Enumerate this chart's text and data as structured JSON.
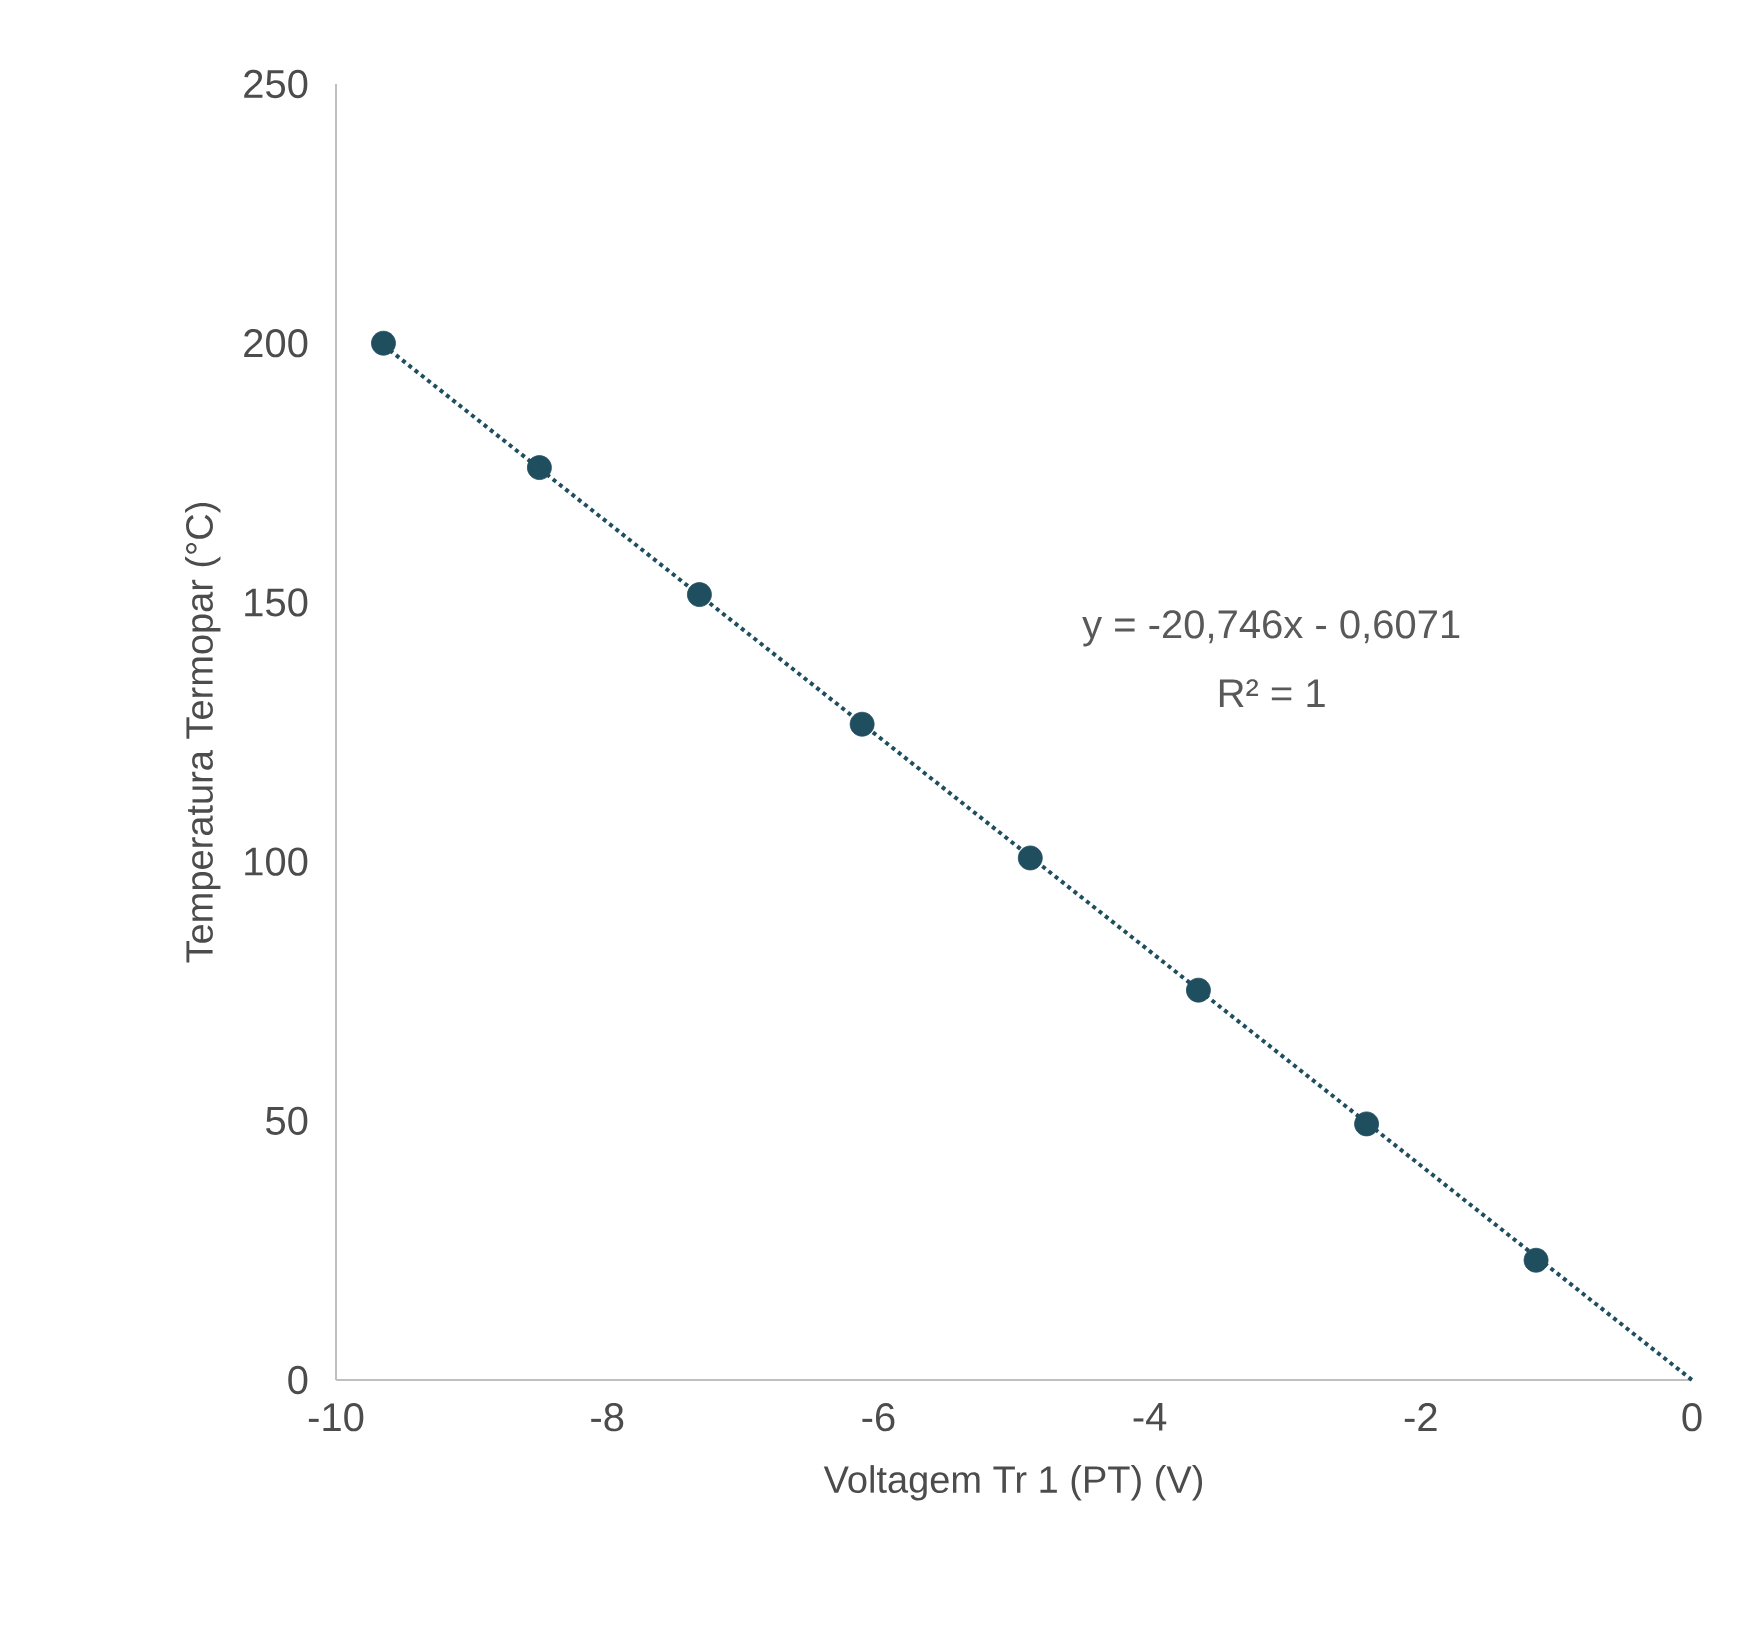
{
  "chart_data": {
    "type": "scatter",
    "xlabel": "Voltagem Tr 1 (PT) (V)",
    "ylabel": "Temperatura Termopar (°C)",
    "xlim": [
      -10,
      0
    ],
    "xticks": [
      -10,
      -8,
      -6,
      -4,
      -2,
      0
    ],
    "ylim": [
      0,
      250
    ],
    "yticks": [
      0,
      50,
      100,
      150,
      200,
      250
    ],
    "series": [
      {
        "marker": "circle",
        "color": "#1f4e5f",
        "x": [
          -9.65,
          -8.5,
          -7.32,
          -6.12,
          -4.88,
          -3.64,
          -2.4,
          -1.15
        ],
        "values": [
          200,
          176,
          151.5,
          126.5,
          100.7,
          75.2,
          49.4,
          23.1
        ]
      },
      {
        "type": "line",
        "marker": "none",
        "color": "#1f4e5f",
        "line_style": "dotted",
        "x": [
          -9.65,
          0
        ],
        "values": [
          199.6,
          0
        ]
      }
    ],
    "annotations": [
      "y = -20,746x - 0,6071",
      "R² = 1"
    ]
  }
}
